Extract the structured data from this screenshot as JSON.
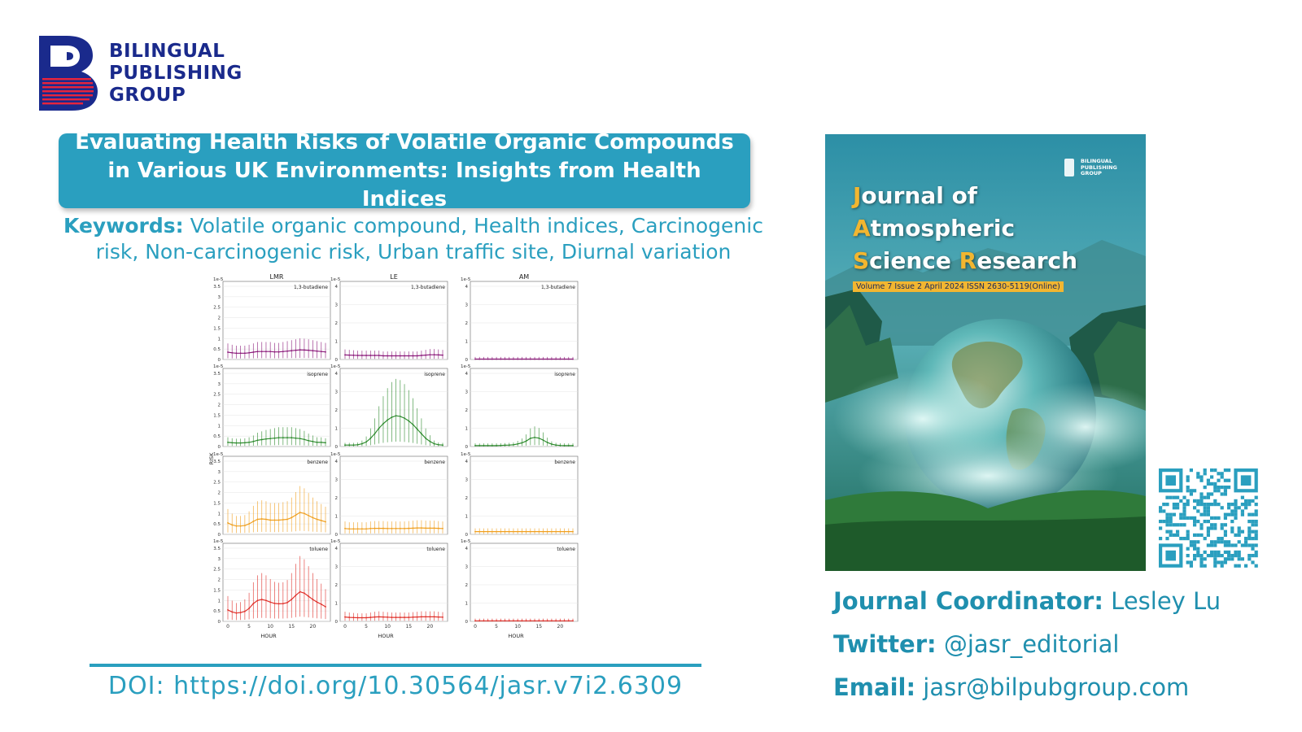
{
  "publisher": {
    "name_lines": [
      "BILINGUAL",
      "PUBLISHING",
      "GROUP"
    ],
    "brand_color": "#1a2a8c",
    "accent_color": "#e8243c"
  },
  "article": {
    "title": "Evaluating Health Risks of Volatile Organic Compounds in Various UK Environments: Insights from Health Indices",
    "keywords_label": "Keywords:",
    "keywords": "Volatile organic compound, Health indices, Carcinogenic risk, Non-carcinogenic risk, Urban traffic site, Diurnal variation",
    "doi": "DOI: https://doi.org/10.30564/jasr.v7i2.6309"
  },
  "chart_data": {
    "type": "line",
    "ylabel": "RISK",
    "xlabel": "HOUR",
    "multiplier_label": "1e-5",
    "columns": [
      "LMR",
      "LE",
      "AM"
    ],
    "rows": [
      "1,3-butadiene",
      "isoprene",
      "benzene",
      "toluene"
    ],
    "x": [
      0,
      1,
      2,
      3,
      4,
      5,
      6,
      7,
      8,
      9,
      10,
      11,
      12,
      13,
      14,
      15,
      16,
      17,
      18,
      19,
      20,
      21,
      22,
      23
    ],
    "x_ticks": [
      0,
      5,
      10,
      15,
      20
    ],
    "ylim": {
      "LMR": [
        0,
        3.5
      ],
      "LE": [
        0,
        4
      ],
      "AM": [
        0,
        4
      ]
    },
    "y_ticks": {
      "LMR": [
        "0",
        "0.5",
        "1",
        "1.5",
        "2",
        "2.5",
        "3",
        "3.5"
      ],
      "LE": [
        "0",
        "1",
        "2",
        "3",
        "4"
      ],
      "AM": [
        "0",
        "1",
        "2",
        "3",
        "4"
      ]
    },
    "row_colors": [
      "#8b1a7a",
      "#2e8b2e",
      "#f0a020",
      "#e0302a"
    ],
    "series": [
      {
        "column": "LMR",
        "compound": "1,3-butadiene",
        "values": [
          0.35,
          0.32,
          0.3,
          0.3,
          0.3,
          0.32,
          0.35,
          0.38,
          0.38,
          0.38,
          0.38,
          0.36,
          0.36,
          0.38,
          0.4,
          0.42,
          0.44,
          0.46,
          0.45,
          0.44,
          0.42,
          0.4,
          0.38,
          0.36
        ]
      },
      {
        "column": "LMR",
        "compound": "isoprene",
        "values": [
          0.2,
          0.18,
          0.17,
          0.17,
          0.18,
          0.2,
          0.24,
          0.3,
          0.33,
          0.36,
          0.38,
          0.4,
          0.42,
          0.42,
          0.42,
          0.42,
          0.4,
          0.38,
          0.34,
          0.28,
          0.24,
          0.2,
          0.2,
          0.18
        ]
      },
      {
        "column": "LMR",
        "compound": "benzene",
        "values": [
          0.55,
          0.45,
          0.4,
          0.4,
          0.42,
          0.5,
          0.62,
          0.72,
          0.74,
          0.72,
          0.68,
          0.68,
          0.68,
          0.7,
          0.72,
          0.8,
          0.92,
          1.05,
          1.0,
          0.9,
          0.8,
          0.72,
          0.66,
          0.6
        ]
      },
      {
        "column": "LMR",
        "compound": "toluene",
        "values": [
          0.55,
          0.45,
          0.4,
          0.42,
          0.48,
          0.62,
          0.85,
          1.0,
          1.05,
          1.0,
          0.92,
          0.86,
          0.84,
          0.85,
          0.9,
          1.05,
          1.25,
          1.42,
          1.35,
          1.2,
          1.05,
          0.92,
          0.82,
          0.7
        ]
      },
      {
        "column": "LE",
        "compound": "1,3-butadiene",
        "values": [
          0.25,
          0.24,
          0.23,
          0.22,
          0.22,
          0.22,
          0.22,
          0.22,
          0.22,
          0.2,
          0.2,
          0.2,
          0.2,
          0.2,
          0.2,
          0.2,
          0.2,
          0.2,
          0.22,
          0.24,
          0.26,
          0.26,
          0.25,
          0.24
        ]
      },
      {
        "column": "LE",
        "compound": "isoprene",
        "values": [
          0.08,
          0.08,
          0.08,
          0.1,
          0.15,
          0.25,
          0.45,
          0.7,
          1.0,
          1.25,
          1.45,
          1.6,
          1.68,
          1.65,
          1.55,
          1.4,
          1.2,
          0.95,
          0.7,
          0.45,
          0.28,
          0.15,
          0.1,
          0.08
        ]
      },
      {
        "column": "LE",
        "compound": "benzene",
        "values": [
          0.32,
          0.3,
          0.3,
          0.3,
          0.3,
          0.3,
          0.32,
          0.33,
          0.33,
          0.33,
          0.32,
          0.32,
          0.32,
          0.32,
          0.32,
          0.33,
          0.34,
          0.35,
          0.35,
          0.34,
          0.34,
          0.34,
          0.33,
          0.32
        ]
      },
      {
        "column": "LE",
        "compound": "toluene",
        "values": [
          0.24,
          0.22,
          0.21,
          0.2,
          0.2,
          0.2,
          0.22,
          0.24,
          0.25,
          0.24,
          0.23,
          0.22,
          0.22,
          0.22,
          0.22,
          0.22,
          0.23,
          0.24,
          0.25,
          0.25,
          0.25,
          0.25,
          0.24,
          0.23
        ]
      },
      {
        "column": "AM",
        "compound": "1,3-butadiene",
        "values": [
          0.02,
          0.02,
          0.02,
          0.02,
          0.02,
          0.02,
          0.02,
          0.02,
          0.02,
          0.02,
          0.02,
          0.02,
          0.02,
          0.02,
          0.02,
          0.02,
          0.02,
          0.02,
          0.02,
          0.02,
          0.02,
          0.02,
          0.02,
          0.02
        ]
      },
      {
        "column": "AM",
        "compound": "isoprene",
        "values": [
          0.05,
          0.05,
          0.05,
          0.05,
          0.05,
          0.05,
          0.06,
          0.07,
          0.08,
          0.1,
          0.14,
          0.2,
          0.3,
          0.45,
          0.5,
          0.46,
          0.35,
          0.22,
          0.13,
          0.08,
          0.06,
          0.05,
          0.05,
          0.05
        ]
      },
      {
        "column": "AM",
        "compound": "benzene",
        "values": [
          0.15,
          0.15,
          0.15,
          0.15,
          0.15,
          0.15,
          0.15,
          0.15,
          0.15,
          0.15,
          0.15,
          0.15,
          0.15,
          0.15,
          0.15,
          0.15,
          0.15,
          0.15,
          0.15,
          0.15,
          0.15,
          0.15,
          0.15,
          0.15
        ]
      },
      {
        "column": "AM",
        "compound": "toluene",
        "values": [
          0.03,
          0.03,
          0.03,
          0.03,
          0.03,
          0.03,
          0.03,
          0.03,
          0.03,
          0.03,
          0.03,
          0.03,
          0.03,
          0.03,
          0.03,
          0.03,
          0.03,
          0.03,
          0.03,
          0.03,
          0.03,
          0.03,
          0.03,
          0.03
        ]
      }
    ]
  },
  "journal": {
    "title_lines": [
      {
        "cap": "J",
        "rest": "ournal of"
      },
      {
        "cap": "A",
        "rest": "tmospheric"
      },
      {
        "cap": "S",
        "rest": "cience ",
        "cap2": "R",
        "rest2": "esearch"
      }
    ],
    "issue_band": "Volume 7 Issue 2 April 2024  ISSN  2630-5119(Online)",
    "cover_logo_lines": [
      "BILINGUAL",
      "PUBLISHING",
      "GROUP"
    ],
    "accent_color": "#f2b630"
  },
  "contact": {
    "coordinator_label": "Journal Coordinator:",
    "coordinator": "Lesley Lu",
    "twitter_label": "Twitter:",
    "twitter": "@jasr_editorial",
    "email_label": "Email:",
    "email": "jasr@bilpubgroup.com"
  }
}
